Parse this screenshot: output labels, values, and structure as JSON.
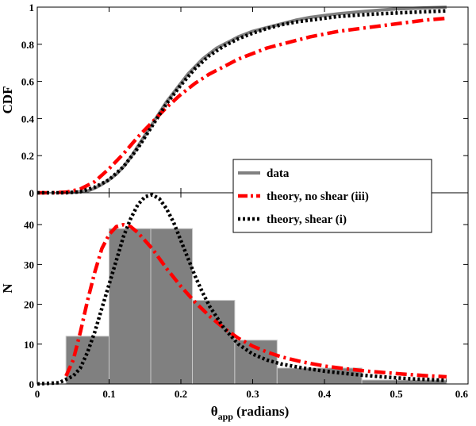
{
  "chart_data": [
    {
      "type": "line",
      "panel": "top",
      "ylabel": "CDF",
      "xlim": [
        0,
        0.6
      ],
      "ylim": [
        0,
        1
      ],
      "xticks": [
        0,
        0.1,
        0.2,
        0.3,
        0.4,
        0.5,
        0.6
      ],
      "yticks": [
        0,
        0.2,
        0.4,
        0.6,
        0.8,
        1
      ],
      "ytick_labels": [
        "0",
        "0.2",
        "0.4",
        "0.6",
        "0.8",
        "1"
      ],
      "series": [
        {
          "name": "data",
          "color": "#808080",
          "style": "solid",
          "x": [
            0.04,
            0.06,
            0.07,
            0.08,
            0.09,
            0.1,
            0.11,
            0.12,
            0.13,
            0.14,
            0.15,
            0.16,
            0.17,
            0.18,
            0.19,
            0.2,
            0.21,
            0.22,
            0.23,
            0.24,
            0.25,
            0.26,
            0.27,
            0.28,
            0.3,
            0.32,
            0.34,
            0.36,
            0.38,
            0.4,
            0.42,
            0.45,
            0.48,
            0.5,
            0.53,
            0.57
          ],
          "y": [
            0,
            0.005,
            0.01,
            0.025,
            0.045,
            0.07,
            0.1,
            0.14,
            0.19,
            0.25,
            0.31,
            0.37,
            0.43,
            0.49,
            0.54,
            0.59,
            0.64,
            0.68,
            0.72,
            0.75,
            0.78,
            0.8,
            0.82,
            0.84,
            0.87,
            0.89,
            0.91,
            0.93,
            0.945,
            0.955,
            0.965,
            0.975,
            0.985,
            0.99,
            0.995,
            1.0
          ]
        },
        {
          "name": "theory, no shear (iii)",
          "color": "#ff0000",
          "style": "dashdot",
          "x": [
            0.0,
            0.02,
            0.04,
            0.06,
            0.08,
            0.1,
            0.12,
            0.14,
            0.16,
            0.18,
            0.2,
            0.22,
            0.24,
            0.26,
            0.28,
            0.3,
            0.32,
            0.34,
            0.36,
            0.38,
            0.4,
            0.42,
            0.45,
            0.48,
            0.51,
            0.54,
            0.57
          ],
          "y": [
            0,
            0,
            0.003,
            0.02,
            0.06,
            0.13,
            0.21,
            0.3,
            0.38,
            0.46,
            0.53,
            0.59,
            0.64,
            0.68,
            0.72,
            0.75,
            0.78,
            0.8,
            0.82,
            0.84,
            0.855,
            0.87,
            0.885,
            0.9,
            0.915,
            0.93,
            0.94
          ]
        },
        {
          "name": "theory, shear (i)",
          "color": "#000000",
          "style": "dotted",
          "x": [
            0.0,
            0.02,
            0.04,
            0.06,
            0.08,
            0.1,
            0.12,
            0.14,
            0.16,
            0.18,
            0.2,
            0.22,
            0.24,
            0.26,
            0.28,
            0.3,
            0.32,
            0.34,
            0.36,
            0.38,
            0.4,
            0.42,
            0.45,
            0.48,
            0.51,
            0.54,
            0.57
          ],
          "y": [
            0,
            0,
            0,
            0.005,
            0.03,
            0.07,
            0.14,
            0.24,
            0.36,
            0.48,
            0.58,
            0.67,
            0.74,
            0.79,
            0.83,
            0.86,
            0.885,
            0.905,
            0.92,
            0.93,
            0.94,
            0.95,
            0.958,
            0.965,
            0.97,
            0.975,
            0.98
          ]
        }
      ]
    },
    {
      "type": "bar",
      "panel": "bottom",
      "xlabel": "θapp (radians)",
      "xlabel_main": "θ",
      "xlabel_sub": "app",
      "xlabel_tail": " (radians)",
      "ylabel": "N",
      "xlim": [
        0,
        0.6
      ],
      "ylim": [
        0,
        48
      ],
      "xticks": [
        0,
        0.1,
        0.2,
        0.3,
        0.4,
        0.5,
        0.6
      ],
      "xtick_labels": [
        "0",
        "0.1",
        "0.2",
        "0.3",
        "0.4",
        "0.5",
        "0.6"
      ],
      "yticks": [
        0,
        10,
        20,
        30,
        40
      ],
      "ytick_labels": [
        "0",
        "10",
        "20",
        "30",
        "40"
      ],
      "bins": [
        {
          "x0": 0.04,
          "x1": 0.1,
          "value": 12
        },
        {
          "x0": 0.1,
          "x1": 0.158,
          "value": 39
        },
        {
          "x0": 0.158,
          "x1": 0.216,
          "value": 39
        },
        {
          "x0": 0.216,
          "x1": 0.275,
          "value": 21
        },
        {
          "x0": 0.275,
          "x1": 0.334,
          "value": 11
        },
        {
          "x0": 0.334,
          "x1": 0.452,
          "value": 4
        },
        {
          "x0": 0.452,
          "x1": 0.57,
          "value": 1
        }
      ],
      "bar_color": "#808080",
      "series": [
        {
          "name": "theory, no shear (iii)",
          "color": "#ff0000",
          "style": "dashdot",
          "x": [
            0.04,
            0.05,
            0.06,
            0.07,
            0.08,
            0.09,
            0.1,
            0.11,
            0.12,
            0.13,
            0.14,
            0.16,
            0.18,
            0.2,
            0.22,
            0.24,
            0.26,
            0.28,
            0.3,
            0.32,
            0.34,
            0.37,
            0.4,
            0.43,
            0.46,
            0.5,
            0.54,
            0.57
          ],
          "y": [
            2,
            6,
            13,
            21,
            28,
            34,
            37.5,
            39.5,
            40,
            39.5,
            38,
            34,
            29,
            24.5,
            20.5,
            17,
            14,
            11.5,
            9.5,
            8,
            6.8,
            5.5,
            4.5,
            3.8,
            3.2,
            2.6,
            2.1,
            1.8
          ]
        },
        {
          "name": "theory, shear (i)",
          "color": "#000000",
          "style": "dotted",
          "x": [
            0.0,
            0.03,
            0.05,
            0.06,
            0.07,
            0.08,
            0.09,
            0.1,
            0.11,
            0.12,
            0.13,
            0.14,
            0.15,
            0.16,
            0.17,
            0.18,
            0.19,
            0.2,
            0.21,
            0.22,
            0.23,
            0.24,
            0.26,
            0.28,
            0.3,
            0.32,
            0.34,
            0.37,
            0.4,
            0.44,
            0.48,
            0.52,
            0.57
          ],
          "y": [
            0,
            0.3,
            2,
            4,
            8,
            13,
            19,
            25,
            31,
            37,
            41.5,
            45,
            47,
            47.5,
            46.5,
            44,
            40.5,
            36,
            31.5,
            27,
            23,
            19.5,
            14,
            10,
            7.5,
            6,
            5,
            4,
            3.2,
            2.4,
            1.8,
            1.3,
            0.9
          ]
        }
      ]
    }
  ],
  "legend": {
    "location": "center-right",
    "entries": [
      {
        "label": "data",
        "color": "#808080",
        "style": "solid"
      },
      {
        "label": "theory, no shear (iii)",
        "color": "#ff0000",
        "style": "dashdot"
      },
      {
        "label": "theory, shear (i)",
        "color": "#000000",
        "style": "dotted"
      }
    ]
  }
}
